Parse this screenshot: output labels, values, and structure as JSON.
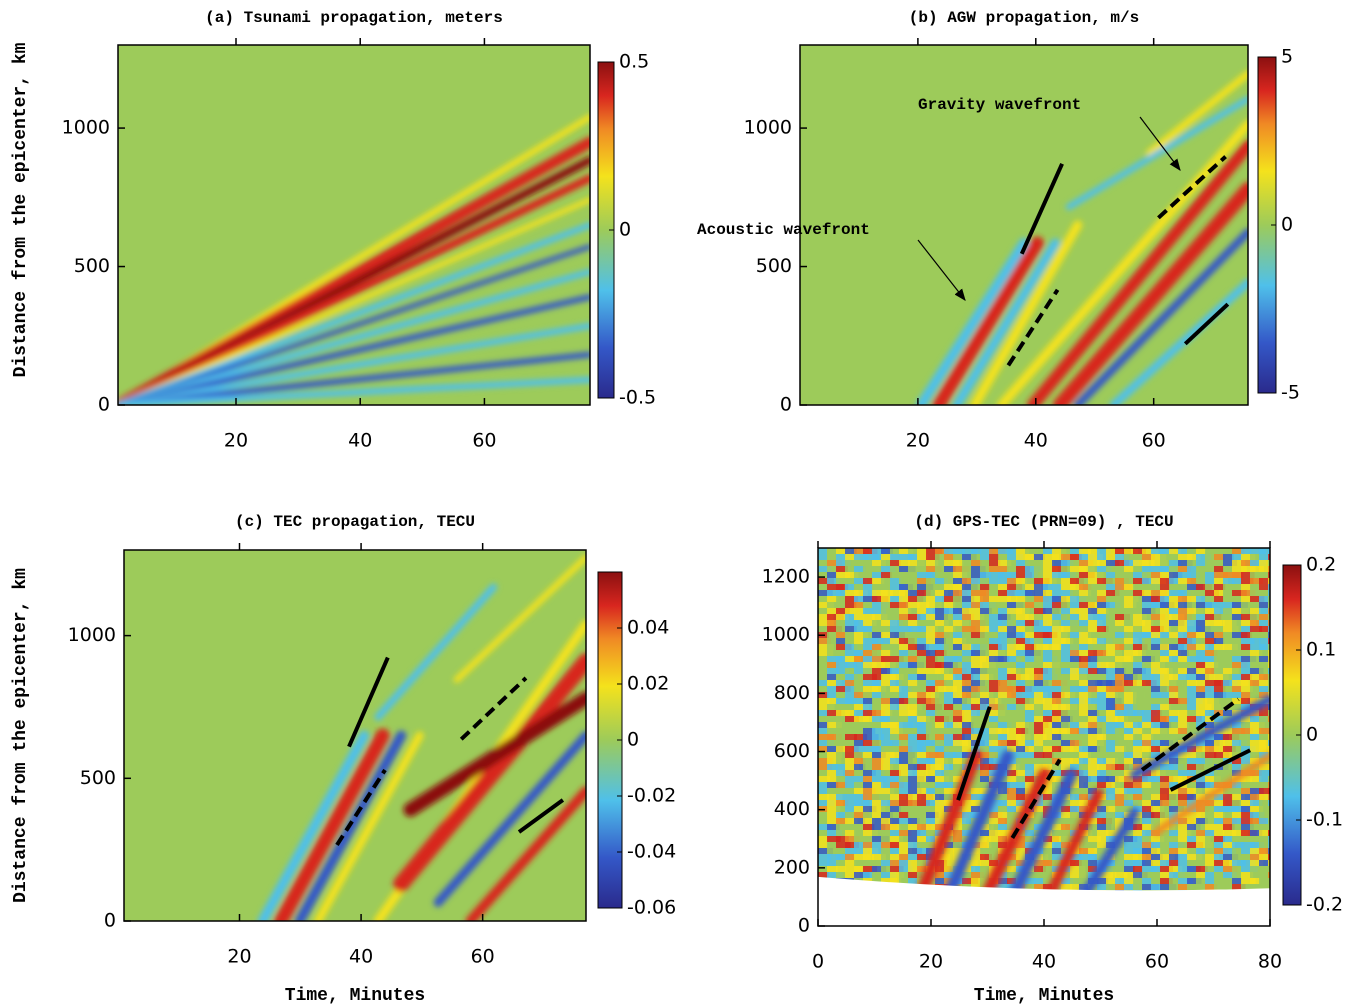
{
  "chart_data": [
    {
      "type": "heatmap",
      "title": "(a) Tsunami propagation, meters",
      "y_label": "Distance from the epicenter, km",
      "xlim": [
        1,
        77
      ],
      "xticks": [
        20,
        40,
        60
      ],
      "ylim": [
        0,
        1300
      ],
      "yticks": [
        0,
        500,
        1000
      ],
      "colorbar_lim": [
        -0.5,
        0.5
      ],
      "colorbar_ticks": [
        0.5,
        0,
        -0.5
      ]
    },
    {
      "type": "heatmap",
      "title": "(b) AGW propagation, m/s",
      "xlim": [
        0,
        76
      ],
      "xticks": [
        20,
        40,
        60
      ],
      "ylim": [
        0,
        1300
      ],
      "yticks": [
        0,
        500,
        1000
      ],
      "colorbar_lim": [
        -5,
        5
      ],
      "colorbar_ticks": [
        5,
        0,
        -5
      ],
      "annotations": [
        "Gravity wavefront",
        "Acoustic wavefront"
      ]
    },
    {
      "type": "heatmap",
      "title": "(c) TEC propagation, TECU",
      "x_label": "Time, Minutes",
      "y_label": "Distance from the epicenter, km",
      "xlim": [
        1,
        77
      ],
      "xticks": [
        20,
        40,
        60
      ],
      "ylim": [
        0,
        1300
      ],
      "yticks": [
        0,
        500,
        1000
      ],
      "colorbar_lim": [
        -0.06,
        0.06
      ],
      "colorbar_ticks": [
        0.04,
        0.02,
        0,
        -0.02,
        -0.04,
        -0.06
      ]
    },
    {
      "type": "heatmap",
      "title": "(d) GPS-TEC (PRN=09) , TECU",
      "x_label": "Time, Minutes",
      "xlim": [
        0,
        80
      ],
      "xticks": [
        0,
        20,
        40,
        60,
        80
      ],
      "ylim": [
        0,
        1300
      ],
      "yticks": [
        0,
        200,
        400,
        600,
        800,
        1000,
        1200
      ],
      "colorbar_lim": [
        -0.2,
        0.2
      ],
      "colorbar_ticks": [
        0.2,
        0.1,
        0,
        -0.1,
        -0.2
      ]
    }
  ]
}
